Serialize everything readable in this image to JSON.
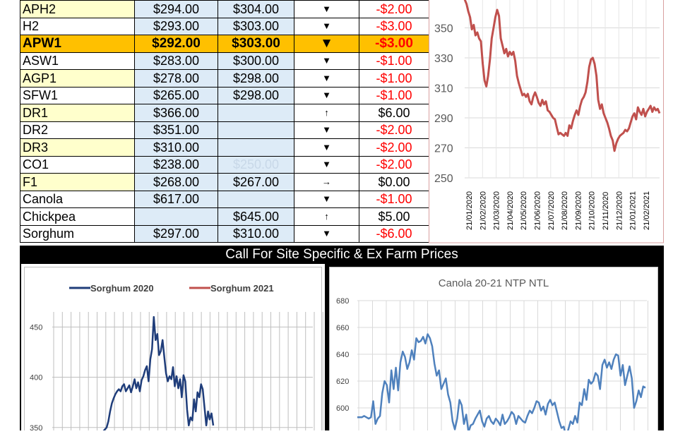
{
  "table": {
    "rows": [
      {
        "grade": "APH2",
        "bid": "$294.00",
        "offer": "$304.00",
        "arrow": "▼",
        "change": "-$2.00",
        "dir": "down",
        "alt": true
      },
      {
        "grade": "H2",
        "bid": "$293.00",
        "offer": "$303.00",
        "arrow": "▼",
        "change": "-$3.00",
        "dir": "down",
        "alt": false
      },
      {
        "grade": "APW1",
        "bid": "$292.00",
        "offer": "$303.00",
        "arrow": "▼",
        "change": "-$3.00",
        "dir": "down",
        "alt": false,
        "highlight": true
      },
      {
        "grade": "ASW1",
        "bid": "$283.00",
        "offer": "$300.00",
        "arrow": "▼",
        "change": "-$1.00",
        "dir": "down",
        "alt": false
      },
      {
        "grade": "AGP1",
        "bid": "$278.00",
        "offer": "$298.00",
        "arrow": "▼",
        "change": "-$1.00",
        "dir": "down",
        "alt": true
      },
      {
        "grade": "SFW1",
        "bid": "$265.00",
        "offer": "$298.00",
        "arrow": "▼",
        "change": "-$1.00",
        "dir": "down",
        "alt": false
      },
      {
        "grade": "DR1",
        "bid": "$366.00",
        "offer": "",
        "arrow": "↑",
        "change": "$6.00",
        "dir": "up",
        "alt": true
      },
      {
        "grade": "DR2",
        "bid": "$351.00",
        "offer": "",
        "arrow": "▼",
        "change": "-$2.00",
        "dir": "down",
        "alt": false
      },
      {
        "grade": "DR3",
        "bid": "$310.00",
        "offer": "",
        "arrow": "▼",
        "change": "-$2.00",
        "dir": "down",
        "alt": true
      },
      {
        "grade": "CO1",
        "bid": "$238.00",
        "offer": "$250.00",
        "arrow": "▼",
        "change": "-$2.00",
        "dir": "down",
        "alt": false,
        "offer_faded": true
      },
      {
        "grade": "F1",
        "bid": "$268.00",
        "offer": "$267.00",
        "arrow": "→",
        "change": "$0.00",
        "dir": "flat",
        "alt": true
      },
      {
        "grade": "Canola",
        "bid": "$617.00",
        "offer": "",
        "arrow": "▼",
        "change": "-$1.00",
        "dir": "down",
        "alt": false
      },
      {
        "grade": "Chickpea",
        "bid": "",
        "offer": "$645.00",
        "arrow": "↑",
        "change": "$5.00",
        "dir": "up",
        "alt": false
      },
      {
        "grade": "Sorghum",
        "bid": "$297.00",
        "offer": "$310.00",
        "arrow": "▼",
        "change": "-$6.00",
        "dir": "down",
        "alt": false
      }
    ]
  },
  "banner": "Call For Site Specific & Ex Farm Prices",
  "colors": {
    "apw_line": "#c0504d",
    "sorghum2020": "#1f3d7a",
    "sorghum2021": "#c0504d",
    "canola_line": "#4f81bd",
    "highlight": "#ffc000",
    "bid_cell": "#ddebf7",
    "grade_alt": "#ffffcc",
    "negative": "#ff0000"
  },
  "chart_data": [
    {
      "type": "line",
      "title": "",
      "xlabel": "",
      "ylabel": "",
      "ylim": [
        250,
        370
      ],
      "yticks": [
        250,
        270,
        290,
        310,
        330,
        350
      ],
      "x_tick_labels": [
        "21/01/2020",
        "21/02/2020",
        "21/03/2020",
        "21/04/2020",
        "21/05/2020",
        "21/06/2020",
        "21/07/2020",
        "21/08/2020",
        "21/09/2020",
        "21/10/2020",
        "21/11/2020",
        "21/12/2020",
        "21/01/2021",
        "21/02/2021"
      ],
      "series": [
        {
          "values": [
            369,
            366,
            361,
            357,
            349,
            352,
            345,
            347,
            343,
            341,
            326,
            315,
            311,
            318,
            329,
            343,
            350,
            357,
            362,
            358,
            343,
            338,
            333,
            336,
            331,
            334,
            332,
            334,
            328,
            318,
            313,
            309,
            305,
            306,
            304,
            306,
            301,
            299,
            304,
            307,
            304,
            300,
            298,
            302,
            299,
            301,
            295,
            294,
            292,
            290,
            289,
            284,
            279,
            280,
            279,
            278,
            280,
            278,
            285,
            283,
            288,
            292,
            295,
            292,
            298,
            302,
            304,
            307,
            314,
            324,
            329,
            330,
            326,
            318,
            302,
            296,
            299,
            293,
            290,
            287,
            283,
            278,
            275,
            268,
            273,
            276,
            278,
            279,
            280,
            282,
            281,
            283,
            287,
            291,
            293,
            289,
            297,
            294,
            292,
            296,
            291,
            294,
            296,
            298,
            294,
            297,
            295,
            296,
            293
          ]
        }
      ]
    },
    {
      "type": "line",
      "title": "",
      "xlabel": "",
      "ylabel": "",
      "ylim": [
        340,
        465
      ],
      "yticks": [
        350,
        400,
        450
      ],
      "legend_position": "top",
      "series": [
        {
          "name": "Sorghum 2020",
          "values": [
            346,
            348,
            350,
            356,
            366,
            374,
            379,
            383,
            386,
            388,
            386,
            391,
            393,
            386,
            389,
            392,
            385,
            391,
            398,
            389,
            395,
            386,
            397,
            401,
            407,
            411,
            396,
            418,
            428,
            460,
            437,
            443,
            422,
            426,
            437,
            420,
            404,
            396,
            401,
            398,
            410,
            391,
            401,
            389,
            398,
            380,
            402,
            396,
            368,
            352,
            360,
            357,
            378,
            366,
            385,
            380,
            393,
            388,
            370,
            352,
            366,
            358,
            364,
            352
          ]
        },
        {
          "name": "Sorghum 2021",
          "values": []
        }
      ]
    },
    {
      "type": "line",
      "title": "Canola 20-21 NTP NTL",
      "xlabel": "",
      "ylabel": "",
      "ylim": [
        580,
        680
      ],
      "yticks": [
        600,
        620,
        640,
        660,
        680
      ],
      "series": [
        {
          "values": [
            593,
            593,
            593,
            594,
            593,
            592,
            593,
            605,
            588,
            592,
            594,
            611,
            620,
            617,
            604,
            628,
            614,
            630,
            613,
            634,
            642,
            638,
            629,
            634,
            643,
            636,
            652,
            649,
            650,
            653,
            648,
            655,
            652,
            646,
            633,
            624,
            628,
            614,
            618,
            622,
            610,
            604,
            590,
            584,
            592,
            606,
            602,
            588,
            595,
            582,
            587,
            588,
            592,
            595,
            598,
            590,
            586,
            592,
            594,
            590,
            588,
            592,
            590,
            587,
            595,
            588,
            590,
            593,
            597,
            595,
            588,
            594,
            592,
            590,
            589,
            594,
            598,
            596,
            600,
            605,
            604,
            598,
            601,
            595,
            603,
            606,
            602,
            604,
            597,
            590,
            585,
            586,
            578,
            584,
            590,
            588,
            594,
            589,
            604,
            602,
            614,
            606,
            621,
            618,
            620,
            626,
            624,
            614,
            632,
            636,
            630,
            634,
            629,
            636,
            640,
            639,
            624,
            632,
            617,
            624,
            631,
            622,
            600,
            605,
            613,
            608,
            616,
            615
          ]
        }
      ]
    }
  ]
}
